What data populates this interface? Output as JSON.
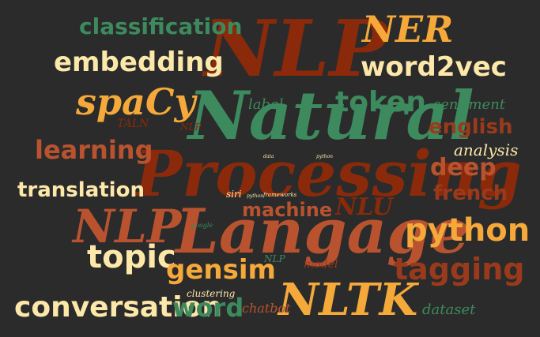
{
  "colors": {
    "background": "#2b2b2b",
    "cream": "#fde7a9",
    "orange": "#f5a93a",
    "rust": "#b9532f",
    "darkred": "#8a2a0a",
    "green": "#3c8a5e",
    "brown": "#9a3a1c"
  },
  "words": {
    "nlp_big": "NLP",
    "natural": "Natural",
    "processing": "Processing",
    "langage": "Langage",
    "nltk": "NLTK",
    "nlp_mid": "NLP",
    "ner": "NER",
    "classification": "classification",
    "embedding": "embedding",
    "word2vec": "word2vec",
    "spacy": "spaCy",
    "token": "token",
    "label": "label",
    "sentiment": "sentiment",
    "english": "english",
    "analysis": "analysis",
    "learning": "learning",
    "taln": "TALN",
    "nlp_small1": "NLP",
    "deep": "deep",
    "french": "french",
    "translation": "translation",
    "siri": "siri",
    "python_small": "python",
    "frameworks": "frameworks",
    "machine": "machine",
    "nlu": "NLU",
    "python": "python",
    "google": "google",
    "topic": "topic",
    "gensim": "gensim",
    "nlp_small2": "NLP",
    "model": "model",
    "tagging": "tagging",
    "clustering": "clustering",
    "word": "word",
    "chatbot": "chatbot",
    "conversation": "conversation",
    "dataset": "dataset",
    "data": "data",
    "python_tiny": "python"
  }
}
